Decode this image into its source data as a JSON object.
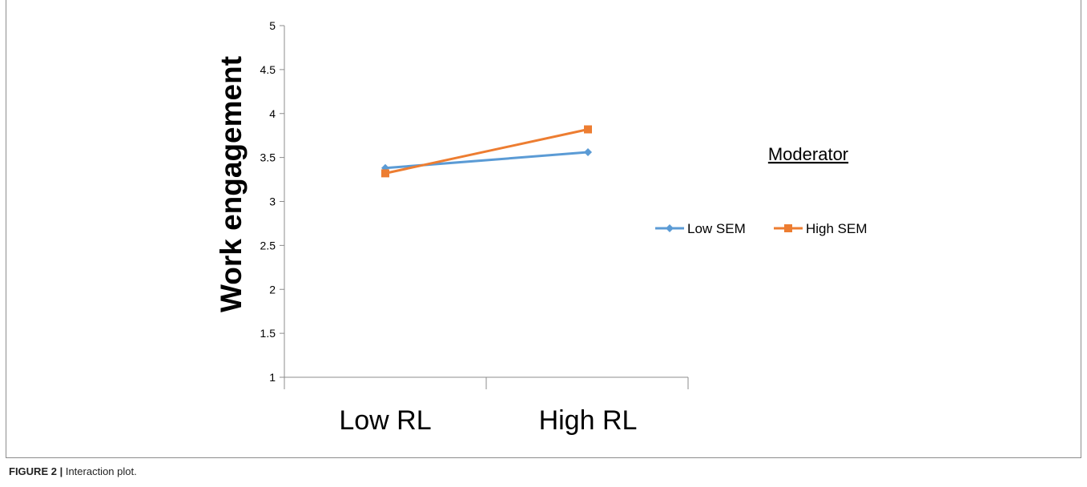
{
  "chart_data": {
    "type": "line",
    "categories": [
      "Low RL",
      "High RL"
    ],
    "series": [
      {
        "name": "Low SEM",
        "values": [
          3.38,
          3.56
        ],
        "color": "#5b9bd5",
        "marker": "diamond"
      },
      {
        "name": "High SEM",
        "values": [
          3.32,
          3.82
        ],
        "color": "#ed7d31",
        "marker": "square"
      }
    ],
    "ylabel": "Work engagement",
    "xlabel": "",
    "ylim": [
      1,
      5
    ],
    "yticks": [
      "1",
      "1.5",
      "2",
      "2.5",
      "3",
      "3.5",
      "4",
      "4.5",
      "5"
    ],
    "grid": false,
    "legend_title": "Moderator",
    "legend_position": "right"
  },
  "caption": {
    "label": "FIGURE 2 |",
    "text": "Interaction plot."
  }
}
